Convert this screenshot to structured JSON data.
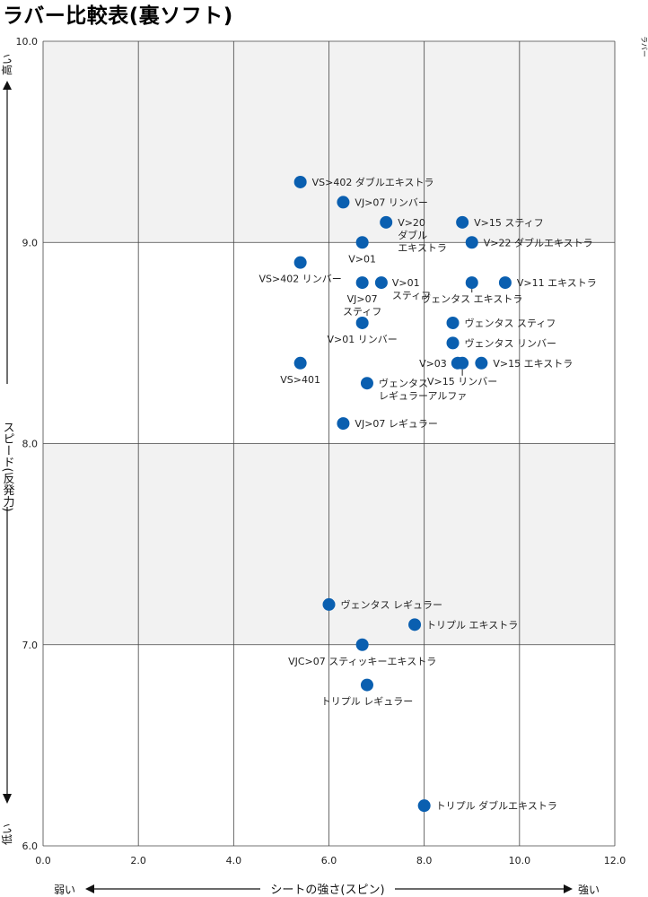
{
  "title": "ラバー比較表(裏ソフト)",
  "legend_label": "ラバー",
  "y_axis": {
    "label": "スピード(反発力)",
    "high": "高い",
    "low": "低い"
  },
  "x_axis": {
    "label": "シートの強さ(スピン)",
    "low": "弱い",
    "high": "強い"
  },
  "colors": {
    "point": "#0a5fb0",
    "band": "#f2f2f2",
    "grid": "#444444"
  },
  "chart_data": {
    "type": "scatter",
    "title": "ラバー比較表(裏ソフト)",
    "xlabel": "シートの強さ(スピン)",
    "ylabel": "スピード(反発力)",
    "xlim": [
      0,
      12
    ],
    "ylim": [
      6,
      10
    ],
    "x_ticks": [
      "0.0",
      "2.0",
      "4.0",
      "6.0",
      "8.0",
      "10.0",
      "12.0"
    ],
    "y_ticks": [
      "6.0",
      "7.0",
      "8.0",
      "9.0",
      "10.0"
    ],
    "grid": true,
    "series": [
      {
        "name": "ラバー",
        "points": [
          {
            "label": "VS>402 ダブルエキストラ",
            "x": 5.4,
            "y": 9.3
          },
          {
            "label": "VJ>07 リンバー",
            "x": 6.3,
            "y": 9.2
          },
          {
            "label": "V>20 ダブル エキストラ",
            "x": 7.2,
            "y": 9.1
          },
          {
            "label": "V>15 スティフ",
            "x": 8.8,
            "y": 9.1
          },
          {
            "label": "V>01",
            "x": 6.7,
            "y": 9.0
          },
          {
            "label": "V>22 ダブルエキストラ",
            "x": 9.0,
            "y": 9.0
          },
          {
            "label": "VS>402 リンバー",
            "x": 5.4,
            "y": 8.9
          },
          {
            "label": "VJ>07 スティフ",
            "x": 6.7,
            "y": 8.8
          },
          {
            "label": "V>01 スティフ",
            "x": 7.1,
            "y": 8.8
          },
          {
            "label": "ヴェンタス エキストラ",
            "x": 9.0,
            "y": 8.8
          },
          {
            "label": "V>11 エキストラ",
            "x": 9.7,
            "y": 8.8
          },
          {
            "label": "V>01 リンバー",
            "x": 6.7,
            "y": 8.6
          },
          {
            "label": "ヴェンタス スティフ",
            "x": 8.6,
            "y": 8.6
          },
          {
            "label": "ヴェンタス リンバー",
            "x": 8.6,
            "y": 8.5
          },
          {
            "label": "VS>401",
            "x": 5.4,
            "y": 8.4
          },
          {
            "label": "V>03",
            "x": 8.7,
            "y": 8.4
          },
          {
            "label": "V>15 リンバー",
            "x": 8.8,
            "y": 8.4
          },
          {
            "label": "V>15 エキストラ",
            "x": 9.2,
            "y": 8.4
          },
          {
            "label": "ヴェンタス レギュラーアルファ",
            "x": 6.8,
            "y": 8.3
          },
          {
            "label": "VJ>07 レギュラー",
            "x": 6.3,
            "y": 8.1
          },
          {
            "label": "ヴェンタス レギュラー",
            "x": 6.0,
            "y": 7.2
          },
          {
            "label": "トリプル エキストラ",
            "x": 7.8,
            "y": 7.1
          },
          {
            "label": "VJC>07 スティッキーエキストラ",
            "x": 6.7,
            "y": 7.0
          },
          {
            "label": "トリプル レギュラー",
            "x": 6.8,
            "y": 6.8
          },
          {
            "label": "トリプル ダブルエキストラ",
            "x": 8.0,
            "y": 6.2
          }
        ]
      }
    ]
  }
}
